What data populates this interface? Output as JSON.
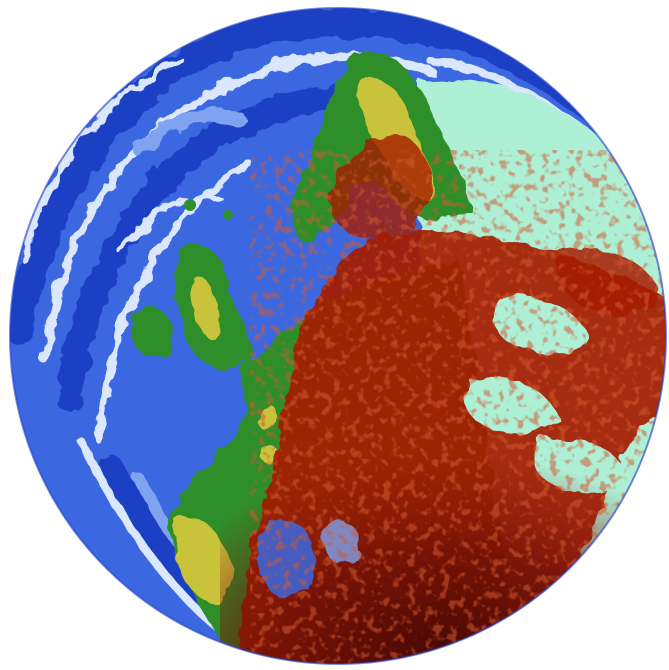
{
  "image": {
    "subject": "painted-globe",
    "colors": {
      "background": "#ffffff",
      "deep_ocean": "#1f3fc4",
      "ocean": "#3b68e0",
      "shallow_ocean": "#7fa3f0",
      "foam": "#dbe6ff",
      "land_green": "#2f8f2a",
      "land_yellow": "#c9c33a",
      "ice": "#aef0d6",
      "red_overlay": "#a51a06",
      "dark_red_overlay": "#5a0c05"
    },
    "icons": [
      "globe-icon"
    ]
  }
}
